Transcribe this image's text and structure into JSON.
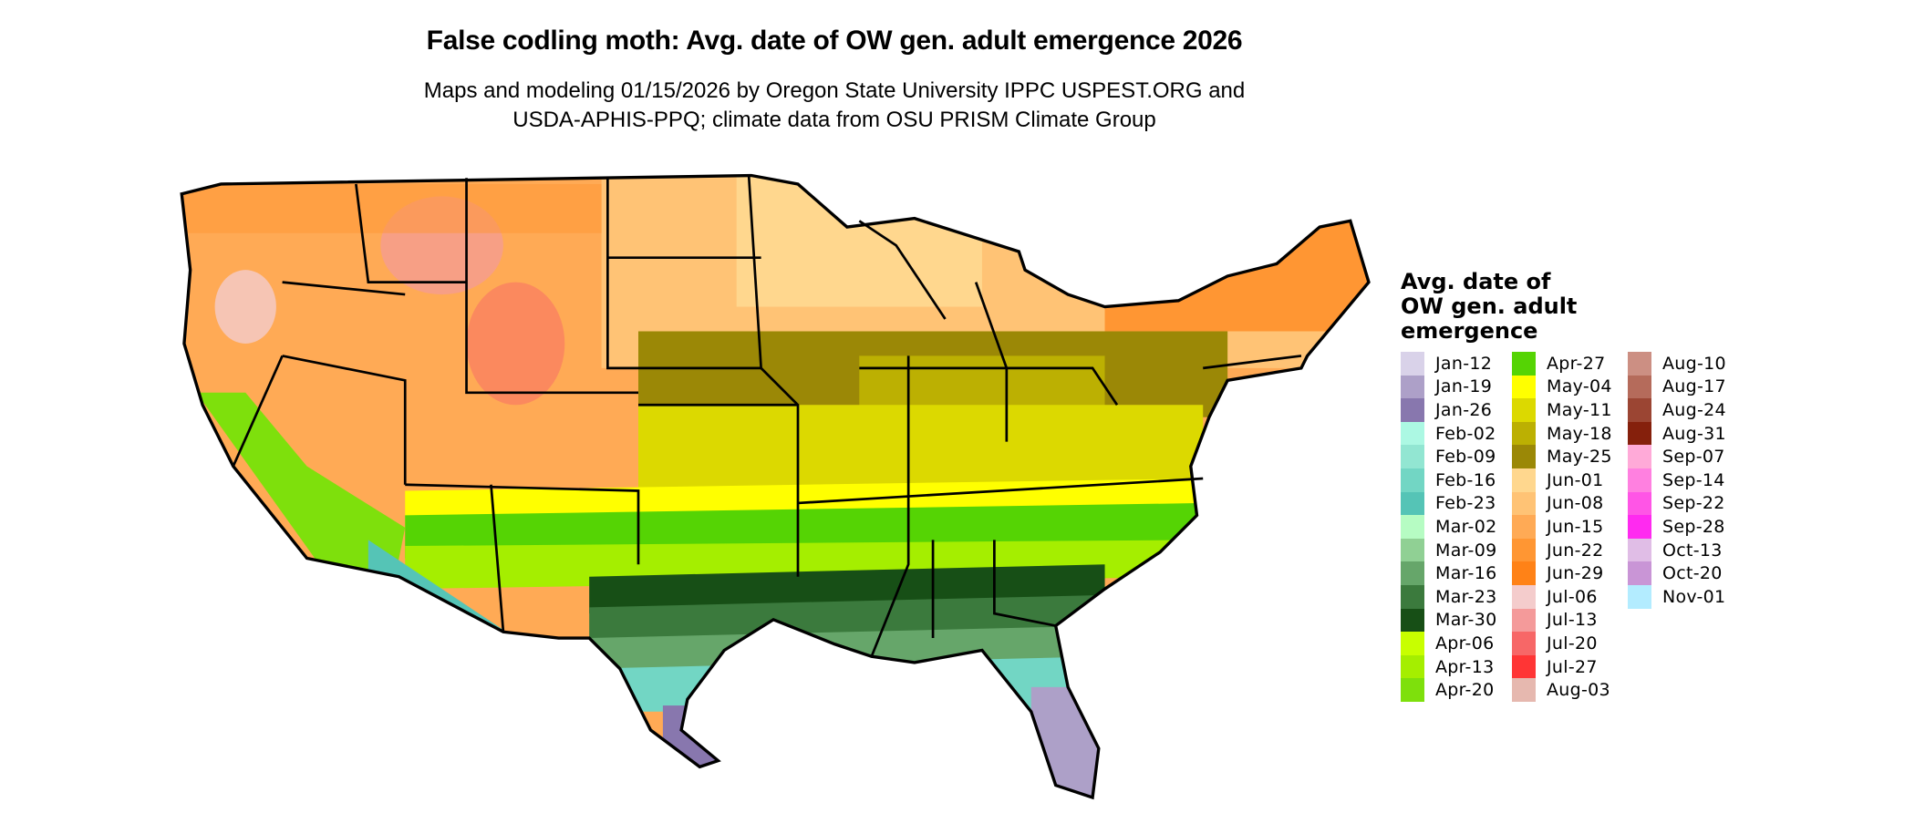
{
  "title": "False codling moth: Avg. date of OW gen. adult emergence 2026",
  "subtitle_line1": "Maps and modeling 01/15/2026 by Oregon State University IPPC USPEST.ORG and",
  "subtitle_line2": "USDA-APHIS-PPQ; climate data from OSU PRISM Climate Group",
  "legend": {
    "title_lines": [
      "Avg. date of",
      "OW gen. adult",
      "emergence"
    ],
    "columns": [
      [
        {
          "label": "Jan-12",
          "color": "#d9d2e9"
        },
        {
          "label": "Jan-19",
          "color": "#ada0c8"
        },
        {
          "label": "Jan-26",
          "color": "#8877ae"
        },
        {
          "label": "Feb-02",
          "color": "#acf8e3"
        },
        {
          "label": "Feb-09",
          "color": "#92e6d2"
        },
        {
          "label": "Feb-16",
          "color": "#72d6c4"
        },
        {
          "label": "Feb-23",
          "color": "#55c4b6"
        },
        {
          "label": "Mar-02",
          "color": "#b6fcc3"
        },
        {
          "label": "Mar-09",
          "color": "#90d094"
        },
        {
          "label": "Mar-16",
          "color": "#66a66a"
        },
        {
          "label": "Mar-23",
          "color": "#3b7a3d"
        },
        {
          "label": "Mar-30",
          "color": "#174f16"
        },
        {
          "label": "Apr-06",
          "color": "#c8ff00"
        },
        {
          "label": "Apr-13",
          "color": "#a5ee00"
        },
        {
          "label": "Apr-20",
          "color": "#7ee00c"
        }
      ],
      [
        {
          "label": "Apr-27",
          "color": "#55d404"
        },
        {
          "label": "May-04",
          "color": "#ffff00"
        },
        {
          "label": "May-11",
          "color": "#dcd900"
        },
        {
          "label": "May-18",
          "color": "#bcb002"
        },
        {
          "label": "May-25",
          "color": "#9b8806"
        },
        {
          "label": "Jun-01",
          "color": "#ffd78e"
        },
        {
          "label": "Jun-08",
          "color": "#ffc375"
        },
        {
          "label": "Jun-15",
          "color": "#ffaa55"
        },
        {
          "label": "Jun-22",
          "color": "#ff9633"
        },
        {
          "label": "Jun-29",
          "color": "#ff8217"
        },
        {
          "label": "Jul-06",
          "color": "#f4cccc"
        },
        {
          "label": "Jul-13",
          "color": "#f49a9a"
        },
        {
          "label": "Jul-20",
          "color": "#f76767"
        },
        {
          "label": "Jul-27",
          "color": "#ff3535"
        },
        {
          "label": "Aug-03",
          "color": "#e6b8af"
        }
      ],
      [
        {
          "label": "Aug-10",
          "color": "#cc8f83"
        },
        {
          "label": "Aug-17",
          "color": "#b56b5b"
        },
        {
          "label": "Aug-24",
          "color": "#9b4533"
        },
        {
          "label": "Aug-31",
          "color": "#85200c"
        },
        {
          "label": "Sep-07",
          "color": "#ffaad8"
        },
        {
          "label": "Sep-14",
          "color": "#ff80e0"
        },
        {
          "label": "Sep-22",
          "color": "#ff55e6"
        },
        {
          "label": "Sep-28",
          "color": "#ff2af0"
        },
        {
          "label": "Oct-13",
          "color": "#e0bde6"
        },
        {
          "label": "Oct-20",
          "color": "#c995d6"
        },
        {
          "label": "Nov-01",
          "color": "#b3ecff"
        }
      ]
    ]
  }
}
